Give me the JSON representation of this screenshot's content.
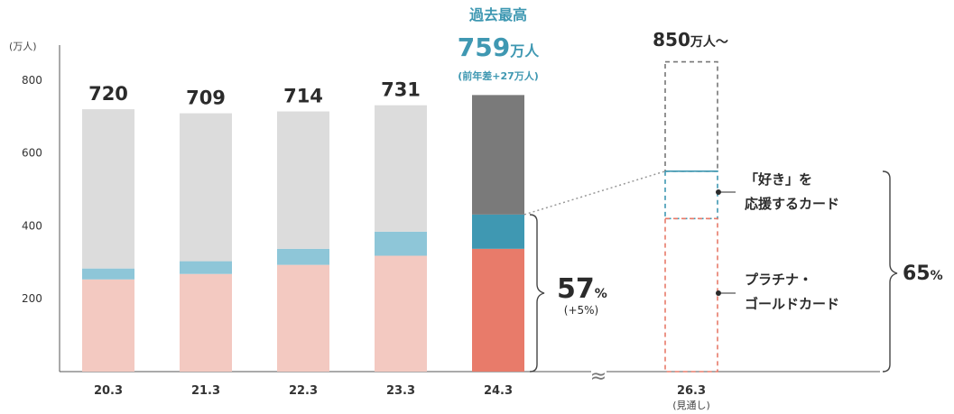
{
  "chart_data": {
    "type": "bar",
    "unit_label": "(万人)",
    "y_ticks": [
      200,
      400,
      600,
      800
    ],
    "ylim": [
      0,
      850
    ],
    "categories": [
      "20.3",
      "21.3",
      "22.3",
      "23.3",
      "24.3"
    ],
    "totals": [
      720,
      709,
      714,
      731,
      759
    ],
    "total_labels": [
      "720",
      "709",
      "714",
      "731",
      ""
    ],
    "series": [
      {
        "values": [
          253,
          268,
          293,
          318,
          337
        ]
      },
      {
        "values": [
          30,
          35,
          44,
          66,
          94
        ]
      },
      {
        "values": [
          437,
          406,
          377,
          347,
          328
        ]
      }
    ],
    "colors": {
      "platinum_gold_past": "#f3c9c1",
      "platinum_gold_latest": "#e87b6a",
      "oshi_past": "#8ec6d8",
      "oshi_latest": "#3f98b2",
      "other_past": "#dcdcdc",
      "other_latest": "#7a7a7a",
      "projection_upper": "#3f98b2",
      "projection_lower": "#e87b6a",
      "projection_border": "#777777"
    },
    "record": {
      "title": "過去最高",
      "value": "759",
      "unit": "万人",
      "note": "(前年差+27万人)"
    },
    "projection": {
      "category": "26.3",
      "category_note": "(見通し)",
      "total_value": "850",
      "total_unit": "万人〜",
      "total": 850,
      "lower_top": 420,
      "upper_top": 550
    },
    "share_latest": {
      "value": "57",
      "unit": "%",
      "note": "(+5%)"
    },
    "share_projection": {
      "value": "65",
      "unit": "%"
    },
    "legend": {
      "oshi_line1": "「好き」を",
      "oshi_line2": "応援するカード",
      "platinum_line1": "プラチナ・",
      "platinum_line2": "ゴールドカード"
    },
    "break_symbol": "≈"
  }
}
